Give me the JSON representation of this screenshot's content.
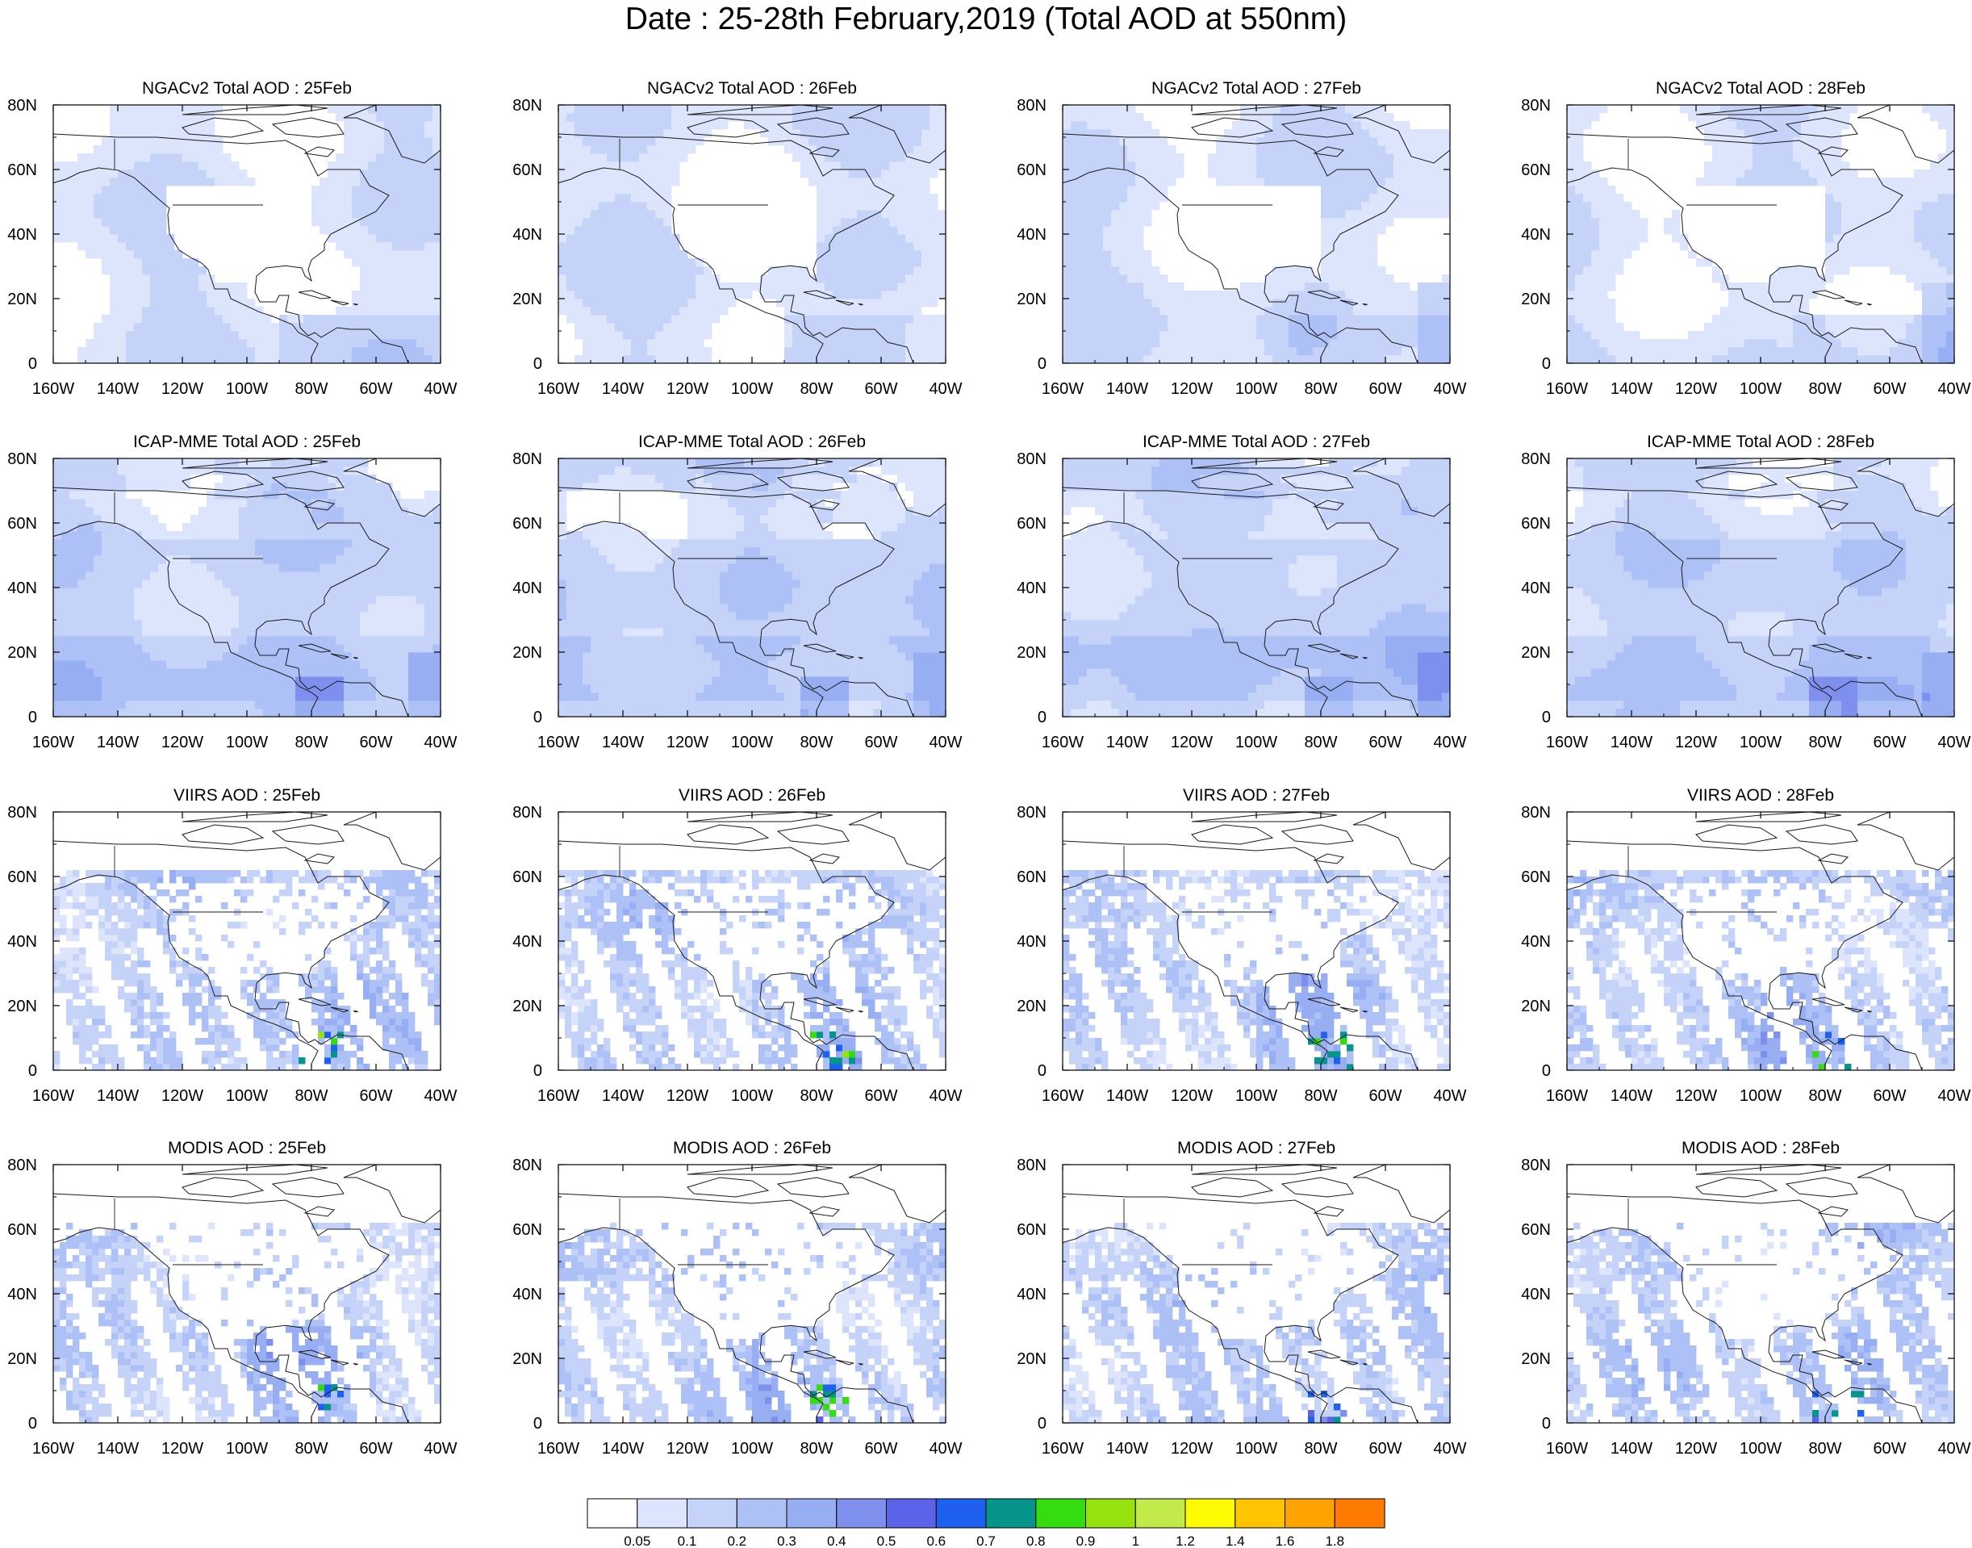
{
  "title": "Date : 25-28th February,2019 (Total AOD at 550nm)",
  "chart_data": {
    "type": "heatmap",
    "description_kind": "map panels of total aerosol optical depth",
    "rows": [
      "NGACv2 Total AOD",
      "ICAP-MME Total AOD",
      "VIIRS AOD",
      "MODIS AOD"
    ],
    "days": [
      "25Feb",
      "26Feb",
      "27Feb",
      "28Feb"
    ],
    "panels": [
      [
        "NGACv2 Total AOD : 25Feb",
        "NGACv2 Total AOD : 26Feb",
        "NGACv2 Total AOD : 27Feb",
        "NGACv2 Total AOD : 28Feb"
      ],
      [
        "ICAP-MME Total AOD : 25Feb",
        "ICAP-MME Total AOD : 26Feb",
        "ICAP-MME Total AOD : 27Feb",
        "ICAP-MME Total AOD : 28Feb"
      ],
      [
        "VIIRS AOD : 25Feb",
        "VIIRS AOD : 26Feb",
        "VIIRS AOD : 27Feb",
        "VIIRS AOD : 28Feb"
      ],
      [
        "MODIS AOD : 25Feb",
        "MODIS AOD : 26Feb",
        "MODIS AOD : 27Feb",
        "MODIS AOD : 28Feb"
      ]
    ],
    "x_ticks": [
      "160W",
      "140W",
      "120W",
      "100W",
      "80W",
      "60W",
      "40W"
    ],
    "y_ticks": [
      "0",
      "20N",
      "40N",
      "60N",
      "80N"
    ],
    "xlim": [
      -160,
      -40
    ],
    "ylim": [
      0,
      80
    ],
    "colorbar": {
      "levels": [
        "0.05",
        "0.1",
        "0.2",
        "0.3",
        "0.4",
        "0.5",
        "0.6",
        "0.7",
        "0.8",
        "0.9",
        "1",
        "1.2",
        "1.4",
        "1.6",
        "1.8"
      ],
      "colors": [
        "#ffffff",
        "#dce5fb",
        "#c5d3f8",
        "#adc1f6",
        "#97aef2",
        "#7f8fee",
        "#5c63e8",
        "#1e61f0",
        "#05958c",
        "#35dc10",
        "#96e20e",
        "#c2ea4a",
        "#fffc02",
        "#ffc400",
        "#ffa300",
        "#ff7a00",
        "#ff2d19"
      ]
    }
  },
  "colors": {
    "land_outline": "#1a1a1a",
    "frame": "#000000"
  }
}
